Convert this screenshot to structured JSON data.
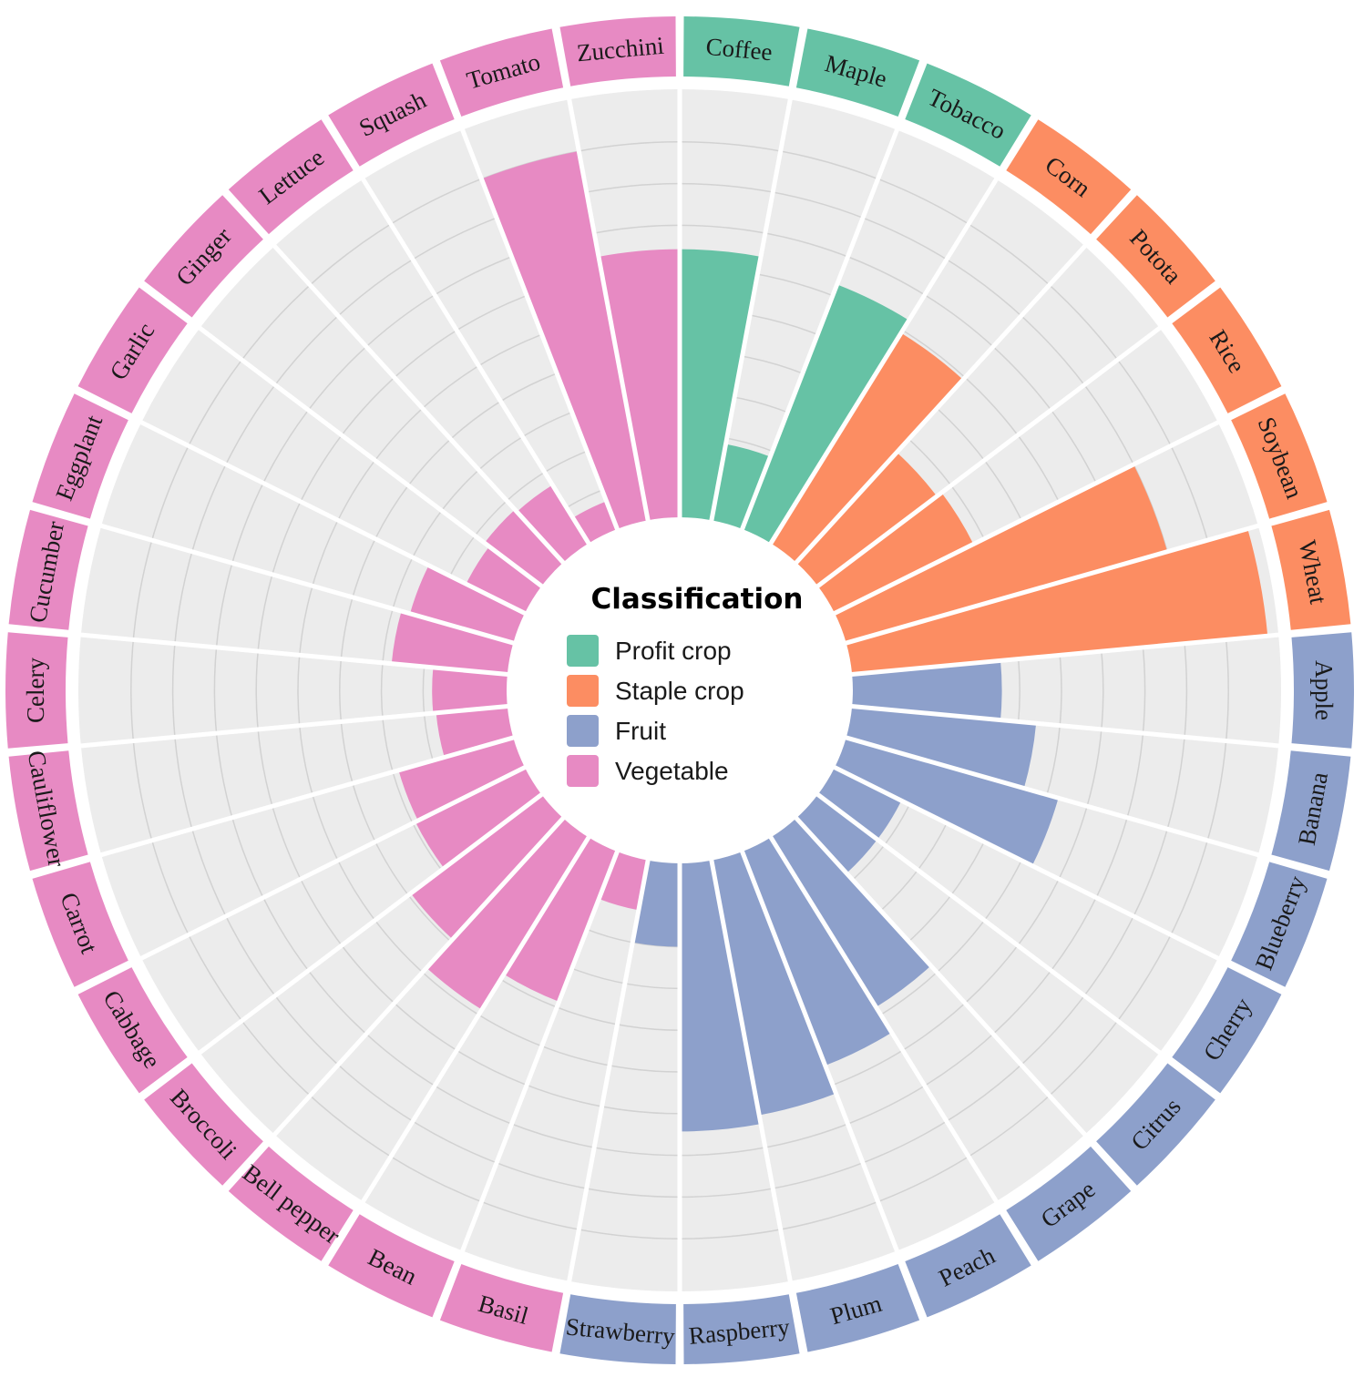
{
  "chart_data": {
    "type": "bar",
    "polar": true,
    "legend": {
      "title": "Classification",
      "placement": "center",
      "groups": [
        {
          "name": "Profit crop",
          "color": "#66c2a5"
        },
        {
          "name": "Staple crop",
          "color": "#fc8d62"
        },
        {
          "name": "Fruit",
          "color": "#8da0cb"
        },
        {
          "name": "Vegetable",
          "color": "#e78ac3"
        }
      ]
    },
    "ylim": [
      0,
      14
    ],
    "grid": true,
    "categories": [
      {
        "name": "Coffee",
        "group": "Profit crop",
        "value": 9.0
      },
      {
        "name": "Maple",
        "group": "Profit crop",
        "value": 2.6
      },
      {
        "name": "Tobacco",
        "group": "Profit crop",
        "value": 8.8
      },
      {
        "name": "Corn",
        "group": "Staple crop",
        "value": 8.3
      },
      {
        "name": "Potota",
        "group": "Staple crop",
        "value": 5.0
      },
      {
        "name": "Rice",
        "group": "Staple crop",
        "value": 5.2
      },
      {
        "name": "Soybean",
        "group": "Staple crop",
        "value": 11.2
      },
      {
        "name": "Wheat",
        "group": "Staple crop",
        "value": 14.0
      },
      {
        "name": "Apple",
        "group": "Fruit",
        "value": 5.0
      },
      {
        "name": "Banana",
        "group": "Fruit",
        "value": 6.2
      },
      {
        "name": "Blueberry",
        "group": "Fruit",
        "value": 7.4
      },
      {
        "name": "Cherry",
        "group": "Fruit",
        "value": 2.5
      },
      {
        "name": "Citrus",
        "group": "Fruit",
        "value": 2.5
      },
      {
        "name": "Grape",
        "group": "Fruit",
        "value": 6.7
      },
      {
        "name": "Peach",
        "group": "Fruit",
        "value": 7.7
      },
      {
        "name": "Plum",
        "group": "Fruit",
        "value": 8.7
      },
      {
        "name": "Raspberry",
        "group": "Fruit",
        "value": 9.0
      },
      {
        "name": "Strawberry",
        "group": "Fruit",
        "value": 2.8
      },
      {
        "name": "Basil",
        "group": "Vegetable",
        "value": 1.7
      },
      {
        "name": "Bean",
        "group": "Vegetable",
        "value": 5.4
      },
      {
        "name": "Bell pepper",
        "group": "Vegetable",
        "value": 6.8
      },
      {
        "name": "Broccoli",
        "group": "Vegetable",
        "value": 5.5
      },
      {
        "name": "Cabbage",
        "group": "Vegetable",
        "value": 4.1
      },
      {
        "name": "Carrot",
        "group": "Vegetable",
        "value": 4.0
      },
      {
        "name": "Cauliflower",
        "group": "Vegetable",
        "value": 2.4
      },
      {
        "name": "Celery",
        "group": "Vegetable",
        "value": 2.5
      },
      {
        "name": "Cucumber",
        "group": "Vegetable",
        "value": 3.9
      },
      {
        "name": "Eggplant",
        "group": "Vegetable",
        "value": 3.6
      },
      {
        "name": "Garlic",
        "group": "Vegetable",
        "value": 2.2
      },
      {
        "name": "Ginger",
        "group": "Vegetable",
        "value": 2.4
      },
      {
        "name": "Lettuce",
        "group": "Vegetable",
        "value": 2.3
      },
      {
        "name": "Squash",
        "group": "Vegetable",
        "value": 1.0
      },
      {
        "name": "Tomato",
        "group": "Vegetable",
        "value": 12.6
      },
      {
        "name": "Zucchini",
        "group": "Vegetable",
        "value": 9.0
      }
    ]
  }
}
